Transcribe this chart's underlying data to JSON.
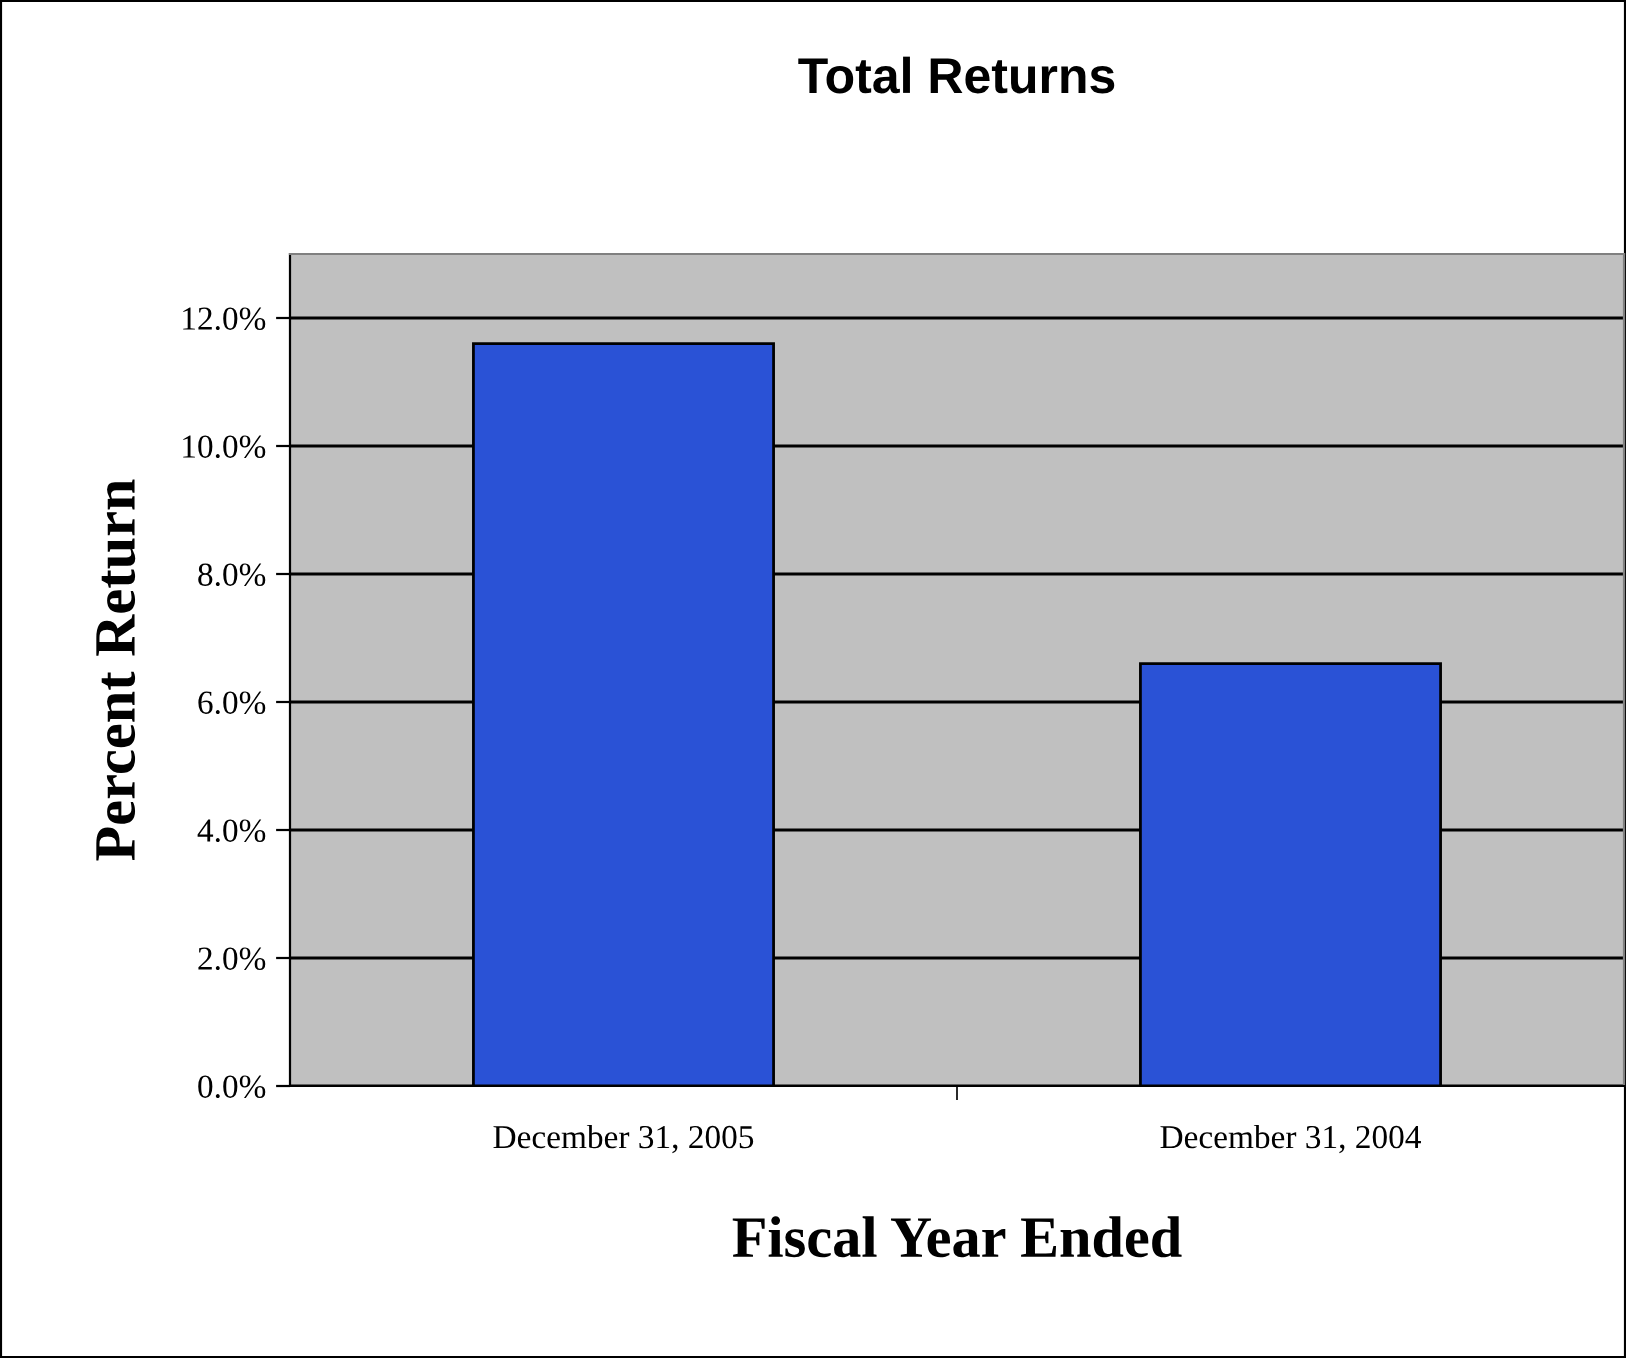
{
  "chart_data": {
    "type": "bar",
    "title": "Total Returns",
    "xlabel": "Fiscal Year Ended",
    "ylabel": "Percent Return",
    "categories": [
      "December 31, 2005",
      "December 31, 2004"
    ],
    "values": [
      11.6,
      6.6
    ],
    "color": "#2a52d6",
    "ylim": [
      0,
      13
    ],
    "yticks": [
      {
        "value": 0,
        "label": "0.0%"
      },
      {
        "value": 2,
        "label": "2.0%"
      },
      {
        "value": 4,
        "label": "4.0%"
      },
      {
        "value": 6,
        "label": "6.0%"
      },
      {
        "value": 8,
        "label": "8.0%"
      },
      {
        "value": 10,
        "label": "10.0%"
      },
      {
        "value": 12,
        "label": "12.0%"
      }
    ],
    "grid": "y",
    "legend": false
  }
}
